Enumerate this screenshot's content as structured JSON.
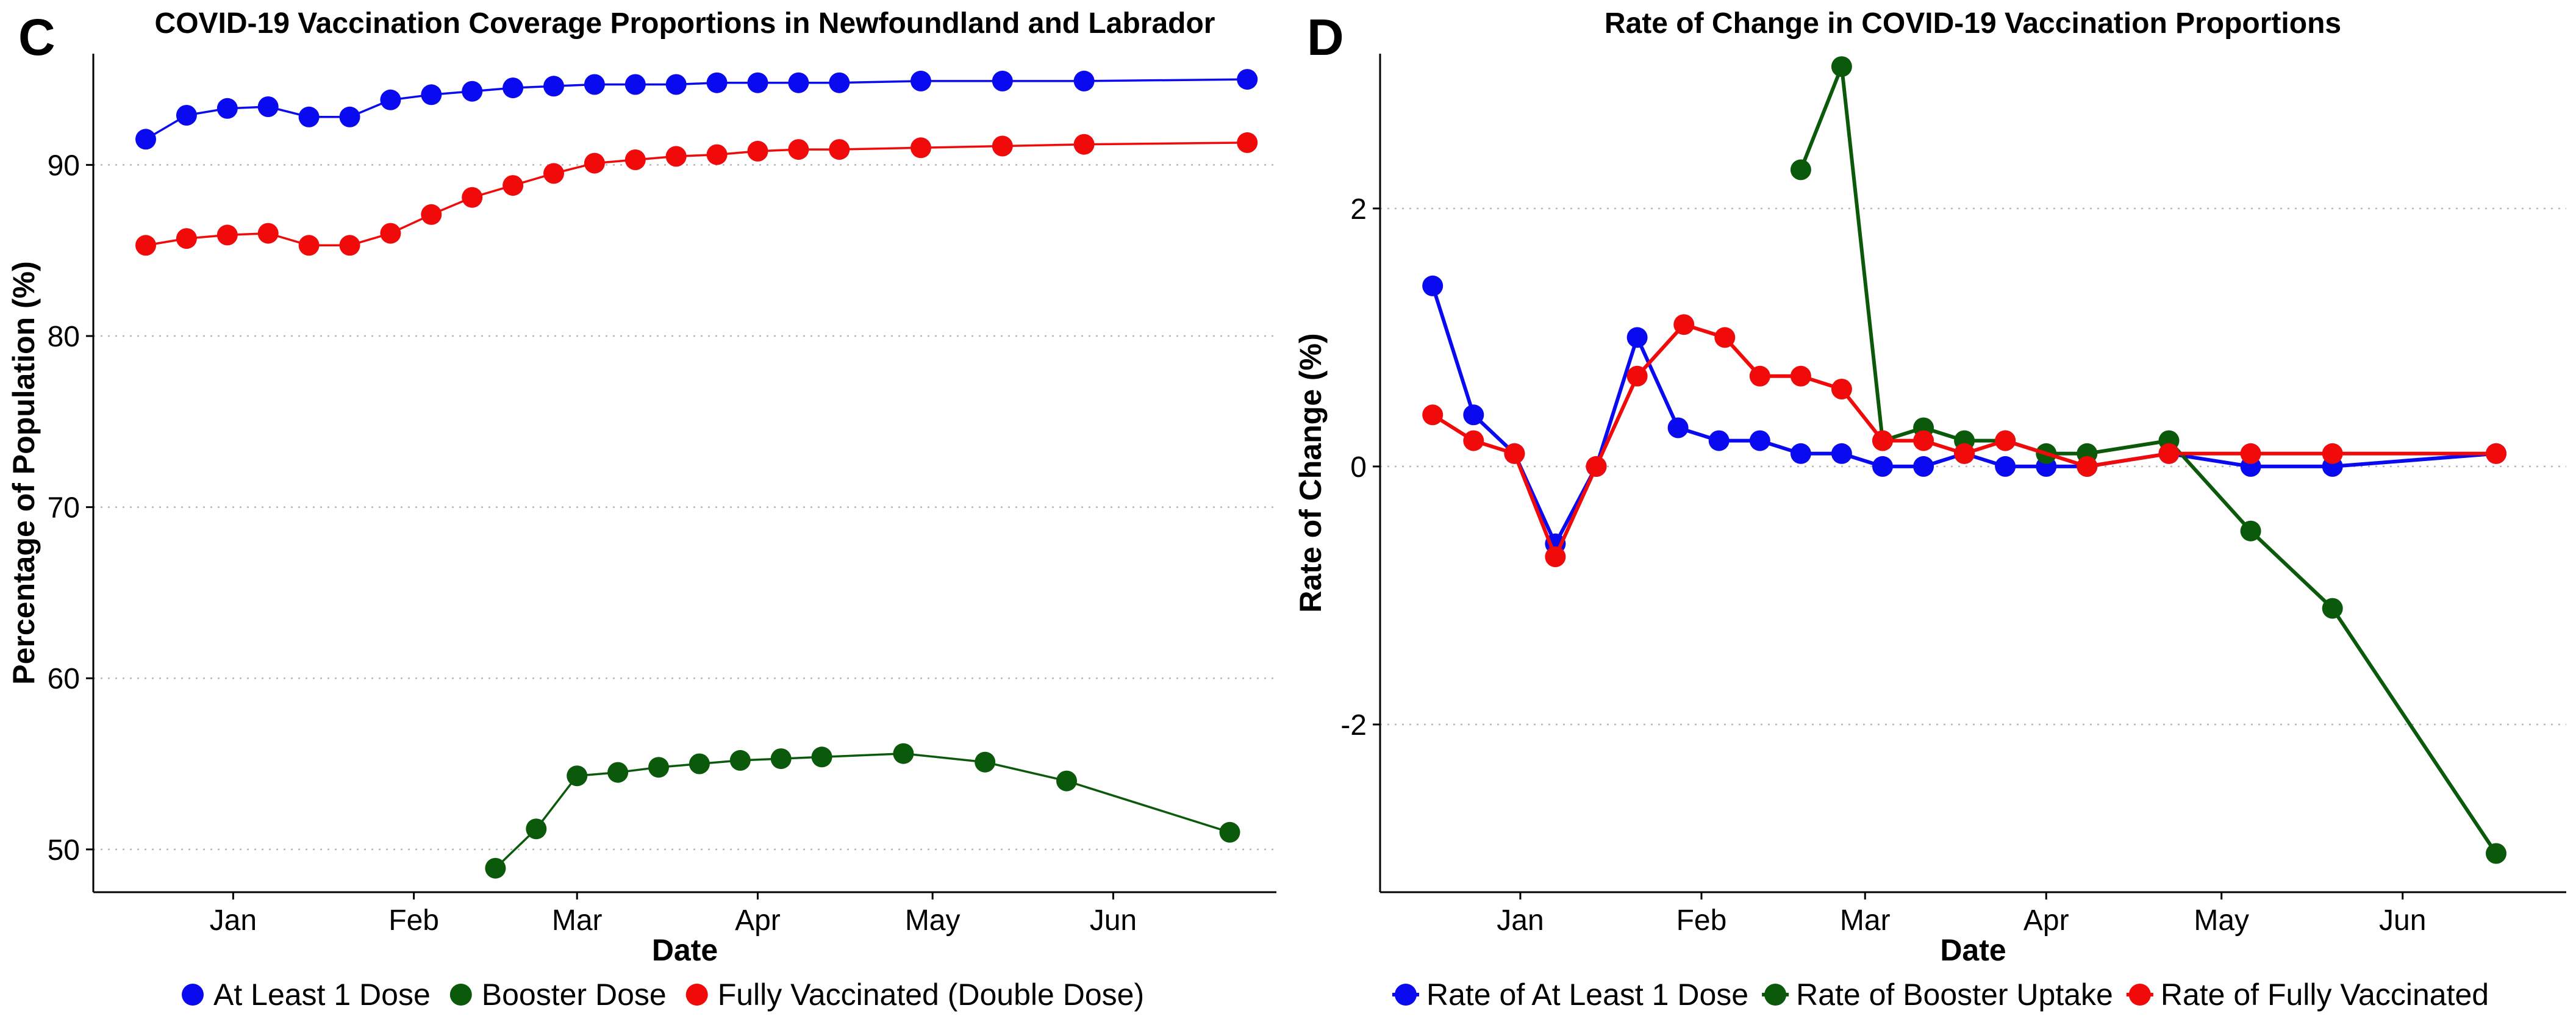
{
  "colors": {
    "blue": "#0a0af0",
    "green": "#0b5a0b",
    "red": "#f00a0a"
  },
  "chart_data": [
    {
      "type": "line",
      "panel": "C",
      "title": "COVID-19 Vaccination Coverage Proportions in Newfoundland and Labrador",
      "xlabel": "Date",
      "ylabel": "Percentage of Population (%)",
      "x_ticks": [
        "Jan",
        "Feb",
        "Mar",
        "Apr",
        "May",
        "Jun"
      ],
      "y_ticks": [
        "50",
        "60",
        "70",
        "80",
        "90"
      ],
      "ylim": [
        47.5,
        96.5
      ],
      "grid": "horizontal dotted",
      "legend_position": "bottom",
      "series": [
        {
          "name": "At Least 1 Dose",
          "color": "#0a0af0",
          "points": [
            [
              "2021-12-17",
              91.5
            ],
            [
              "2021-12-24",
              92.9
            ],
            [
              "2021-12-31",
              93.3
            ],
            [
              "2022-01-07",
              93.4
            ],
            [
              "2022-01-14",
              92.8
            ],
            [
              "2022-01-21",
              92.8
            ],
            [
              "2022-01-28",
              93.8
            ],
            [
              "2022-02-04",
              94.1
            ],
            [
              "2022-02-11",
              94.3
            ],
            [
              "2022-02-18",
              94.5
            ],
            [
              "2022-02-25",
              94.6
            ],
            [
              "2022-03-04",
              94.7
            ],
            [
              "2022-03-11",
              94.7
            ],
            [
              "2022-03-18",
              94.7
            ],
            [
              "2022-03-25",
              94.8
            ],
            [
              "2022-04-01",
              94.8
            ],
            [
              "2022-04-08",
              94.8
            ],
            [
              "2022-04-15",
              94.8
            ],
            [
              "2022-04-29",
              94.9
            ],
            [
              "2022-05-13",
              94.9
            ],
            [
              "2022-05-27",
              94.9
            ],
            [
              "2022-06-24",
              95.0
            ]
          ]
        },
        {
          "name": "Booster Dose",
          "color": "#0b5a0b",
          "points": [
            [
              "2022-02-15",
              48.9
            ],
            [
              "2022-02-22",
              51.2
            ],
            [
              "2022-03-01",
              54.3
            ],
            [
              "2022-03-08",
              54.5
            ],
            [
              "2022-03-15",
              54.8
            ],
            [
              "2022-03-22",
              55.0
            ],
            [
              "2022-03-29",
              55.2
            ],
            [
              "2022-04-05",
              55.3
            ],
            [
              "2022-04-12",
              55.4
            ],
            [
              "2022-04-26",
              55.6
            ],
            [
              "2022-05-10",
              55.1
            ],
            [
              "2022-05-24",
              54.0
            ],
            [
              "2022-06-21",
              51.0
            ]
          ]
        },
        {
          "name": "Fully Vaccinated (Double Dose)",
          "color": "#f00a0a",
          "points": [
            [
              "2021-12-17",
              85.3
            ],
            [
              "2021-12-24",
              85.7
            ],
            [
              "2021-12-31",
              85.9
            ],
            [
              "2022-01-07",
              86.0
            ],
            [
              "2022-01-14",
              85.3
            ],
            [
              "2022-01-21",
              85.3
            ],
            [
              "2022-01-28",
              86.0
            ],
            [
              "2022-02-04",
              87.1
            ],
            [
              "2022-02-11",
              88.1
            ],
            [
              "2022-02-18",
              88.8
            ],
            [
              "2022-02-25",
              89.5
            ],
            [
              "2022-03-04",
              90.1
            ],
            [
              "2022-03-11",
              90.3
            ],
            [
              "2022-03-18",
              90.5
            ],
            [
              "2022-03-25",
              90.6
            ],
            [
              "2022-04-01",
              90.8
            ],
            [
              "2022-04-08",
              90.9
            ],
            [
              "2022-04-15",
              90.9
            ],
            [
              "2022-04-29",
              91.0
            ],
            [
              "2022-05-13",
              91.1
            ],
            [
              "2022-05-27",
              91.2
            ],
            [
              "2022-06-24",
              91.3
            ]
          ]
        }
      ]
    },
    {
      "type": "line",
      "panel": "D",
      "title": "Rate of Change in COVID-19 Vaccination Proportions",
      "xlabel": "Date",
      "ylabel": "Rate of Change (%)",
      "x_ticks": [
        "Jan",
        "Feb",
        "Mar",
        "Apr",
        "May",
        "Jun"
      ],
      "y_ticks": [
        "-2",
        "0",
        "2"
      ],
      "ylim": [
        -3.3,
        3.2
      ],
      "grid": "horizontal dotted",
      "legend_position": "bottom",
      "series": [
        {
          "name": "Rate of At Least 1 Dose",
          "color": "#0a0af0",
          "points": [
            [
              "2021-12-17",
              1.4
            ],
            [
              "2021-12-24",
              0.4
            ],
            [
              "2021-12-31",
              0.1
            ],
            [
              "2022-01-07",
              -0.6
            ],
            [
              "2022-01-14",
              0.0
            ],
            [
              "2022-01-21",
              1.0
            ],
            [
              "2022-01-28",
              0.3
            ],
            [
              "2022-02-04",
              0.2
            ],
            [
              "2022-02-11",
              0.2
            ],
            [
              "2022-02-18",
              0.1
            ],
            [
              "2022-02-25",
              0.1
            ],
            [
              "2022-03-04",
              0.0
            ],
            [
              "2022-03-11",
              0.0
            ],
            [
              "2022-03-18",
              0.1
            ],
            [
              "2022-03-25",
              0.0
            ],
            [
              "2022-04-01",
              0.0
            ],
            [
              "2022-04-08",
              0.0
            ],
            [
              "2022-04-22",
              0.1
            ],
            [
              "2022-05-06",
              0.0
            ],
            [
              "2022-05-20",
              0.0
            ],
            [
              "2022-06-17",
              0.1
            ]
          ]
        },
        {
          "name": "Rate of Booster Uptake",
          "color": "#0b5a0b",
          "points": [
            [
              "2022-02-18",
              2.3
            ],
            [
              "2022-02-25",
              3.1
            ],
            [
              "2022-03-04",
              0.2
            ],
            [
              "2022-03-11",
              0.3
            ],
            [
              "2022-03-18",
              0.2
            ],
            [
              "2022-03-25",
              0.2
            ],
            [
              "2022-04-01",
              0.1
            ],
            [
              "2022-04-08",
              0.1
            ],
            [
              "2022-04-22",
              0.2
            ],
            [
              "2022-05-06",
              -0.5
            ],
            [
              "2022-05-20",
              -1.1
            ],
            [
              "2022-06-17",
              -3.0
            ]
          ]
        },
        {
          "name": "Rate of Fully Vaccinated",
          "color": "#f00a0a",
          "points": [
            [
              "2021-12-17",
              0.4
            ],
            [
              "2021-12-24",
              0.2
            ],
            [
              "2021-12-31",
              0.1
            ],
            [
              "2022-01-07",
              -0.7
            ],
            [
              "2022-01-14",
              0.0
            ],
            [
              "2022-01-21",
              0.7
            ],
            [
              "2022-01-29",
              1.1
            ],
            [
              "2022-02-05",
              1.0
            ],
            [
              "2022-02-11",
              0.7
            ],
            [
              "2022-02-18",
              0.7
            ],
            [
              "2022-02-25",
              0.6
            ],
            [
              "2022-03-04",
              0.2
            ],
            [
              "2022-03-11",
              0.2
            ],
            [
              "2022-03-18",
              0.1
            ],
            [
              "2022-03-25",
              0.2
            ],
            [
              "2022-04-08",
              0.0
            ],
            [
              "2022-04-22",
              0.1
            ],
            [
              "2022-05-06",
              0.1
            ],
            [
              "2022-05-20",
              0.1
            ],
            [
              "2022-06-17",
              0.1
            ]
          ]
        }
      ]
    }
  ]
}
